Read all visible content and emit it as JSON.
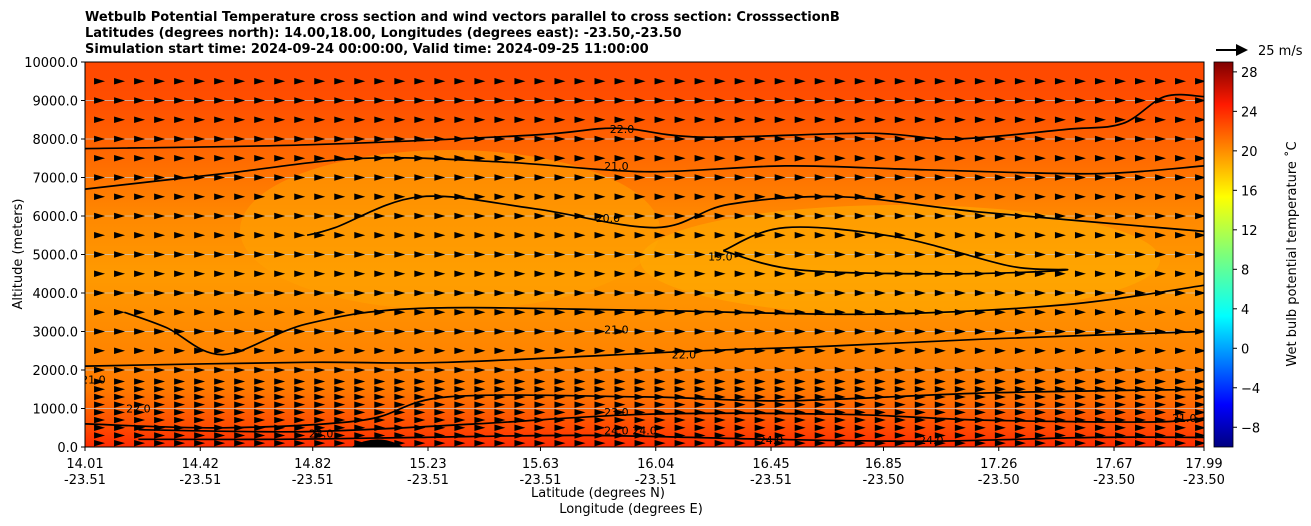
{
  "chart_data": {
    "type": "heatmap",
    "title_lines": [
      "Wetbulb Potential Temperature cross section and wind vectors parallel to cross section: CrosssectionB",
      "Latitudes (degrees north): 14.00,18.00, Longitudes (degrees east): -23.50,-23.50",
      "Simulation start time: 2024-09-24 00:00:00, Valid time: 2024-09-25 11:00:00"
    ],
    "xlabel_lat": "Latitude (degrees N)",
    "xlabel_lon": "Longitude (degrees E)",
    "ylabel": "Altitude (meters)",
    "ylim": [
      0,
      10000
    ],
    "y_ticks": [
      {
        "value": 0,
        "label": "0.0"
      },
      {
        "value": 1000,
        "label": "1000.0"
      },
      {
        "value": 2000,
        "label": "2000.0"
      },
      {
        "value": 3000,
        "label": "3000.0"
      },
      {
        "value": 4000,
        "label": "4000.0"
      },
      {
        "value": 5000,
        "label": "5000.0"
      },
      {
        "value": 6000,
        "label": "6000.0"
      },
      {
        "value": 7000,
        "label": "7000.0"
      },
      {
        "value": 8000,
        "label": "8000.0"
      },
      {
        "value": 9000,
        "label": "9000.0"
      },
      {
        "value": 10000,
        "label": "10000.0"
      }
    ],
    "x_ticks": [
      {
        "lat": "14.01",
        "lon": "-23.51"
      },
      {
        "lat": "14.42",
        "lon": "-23.51"
      },
      {
        "lat": "14.82",
        "lon": "-23.51"
      },
      {
        "lat": "15.23",
        "lon": "-23.51"
      },
      {
        "lat": "15.63",
        "lon": "-23.51"
      },
      {
        "lat": "16.04",
        "lon": "-23.51"
      },
      {
        "lat": "16.45",
        "lon": "-23.51"
      },
      {
        "lat": "16.85",
        "lon": "-23.50"
      },
      {
        "lat": "17.26",
        "lon": "-23.50"
      },
      {
        "lat": "17.67",
        "lon": "-23.50"
      },
      {
        "lat": "17.99",
        "lon": "-23.50"
      }
    ],
    "grid_y": true,
    "colorbar": {
      "label": "Wet bulb potential temperature ˚C",
      "range": [
        -10,
        29
      ],
      "ticks": [
        -8,
        -4,
        0,
        4,
        8,
        12,
        16,
        20,
        24,
        28
      ],
      "tick_labels": [
        "−8",
        "−4",
        "0",
        "4",
        "8",
        "12",
        "16",
        "20",
        "24",
        "28"
      ],
      "colormap": "jet"
    },
    "quiver_key": {
      "label": "25 m/s",
      "speed": 25
    },
    "wind_rows_altitude": [
      100,
      300,
      500,
      700,
      900,
      1100,
      1300,
      1500,
      1700,
      2000,
      2500,
      3000,
      3500,
      4000,
      4500,
      5000,
      5500,
      6000,
      6500,
      7000,
      7500,
      8000,
      8500,
      9000,
      9500
    ],
    "contours": [
      {
        "label": "22.0",
        "points": [
          [
            14.01,
            7750
          ],
          [
            14.8,
            7850
          ],
          [
            15.6,
            8100
          ],
          [
            15.9,
            8280
          ],
          [
            16.2,
            8050
          ],
          [
            16.8,
            8150
          ],
          [
            17.1,
            8000
          ],
          [
            17.5,
            8250
          ],
          [
            17.7,
            8400
          ],
          [
            17.85,
            9100
          ],
          [
            17.99,
            9100
          ]
        ]
      },
      {
        "label": "21.0",
        "points": [
          [
            14.01,
            6700
          ],
          [
            14.5,
            7100
          ],
          [
            15.0,
            7500
          ],
          [
            15.5,
            7400
          ],
          [
            16.0,
            7150
          ],
          [
            16.5,
            7300
          ],
          [
            17.0,
            7200
          ],
          [
            17.6,
            7100
          ],
          [
            17.99,
            7300
          ]
        ]
      },
      {
        "label": "20.0",
        "points": [
          [
            14.8,
            5500
          ],
          [
            14.9,
            5700
          ],
          [
            15.2,
            6500
          ],
          [
            15.6,
            6200
          ],
          [
            16.04,
            5700
          ],
          [
            16.3,
            6300
          ],
          [
            16.7,
            6500
          ],
          [
            17.2,
            6100
          ],
          [
            17.99,
            5600
          ]
        ]
      },
      {
        "label": "19.0",
        "points": [
          [
            16.28,
            5100
          ],
          [
            16.5,
            5700
          ],
          [
            16.9,
            5450
          ],
          [
            17.3,
            4700
          ],
          [
            17.5,
            4600
          ],
          [
            17.1,
            4500
          ],
          [
            16.55,
            4600
          ],
          [
            16.28,
            5100
          ]
        ]
      },
      {
        "label": "21.0",
        "points": [
          [
            14.15,
            3500
          ],
          [
            14.3,
            3100
          ],
          [
            14.5,
            2400
          ],
          [
            14.8,
            3200
          ],
          [
            15.2,
            3600
          ],
          [
            16.0,
            3550
          ],
          [
            16.8,
            3450
          ],
          [
            17.5,
            3700
          ],
          [
            17.99,
            4200
          ]
        ]
      },
      {
        "label": "22.0",
        "points": [
          [
            14.01,
            2100
          ],
          [
            14.8,
            2200
          ],
          [
            15.3,
            2200
          ],
          [
            16.2,
            2500
          ],
          [
            16.6,
            2600
          ],
          [
            17.2,
            2800
          ],
          [
            17.99,
            3000
          ]
        ]
      },
      {
        "label": "22.0",
        "points": [
          [
            14.01,
            600
          ],
          [
            14.5,
            500
          ],
          [
            15.0,
            700
          ],
          [
            15.3,
            1300
          ],
          [
            16.0,
            1300
          ],
          [
            16.5,
            1200
          ],
          [
            17.2,
            1400
          ],
          [
            17.99,
            1500
          ]
        ]
      },
      {
        "label": "23.0",
        "points": [
          [
            14.2,
            450
          ],
          [
            14.8,
            400
          ],
          [
            15.4,
            600
          ],
          [
            16.0,
            850
          ],
          [
            16.7,
            850
          ],
          [
            17.2,
            700
          ],
          [
            17.8,
            650
          ],
          [
            17.99,
            750
          ]
        ]
      },
      {
        "label": "24.0",
        "points": [
          [
            14.2,
            200
          ],
          [
            14.7,
            200
          ],
          [
            15.2,
            250
          ],
          [
            15.8,
            300
          ],
          [
            16.45,
            200
          ],
          [
            17.0,
            150
          ],
          [
            17.6,
            250
          ],
          [
            17.99,
            250
          ]
        ]
      }
    ],
    "contour_labels": [
      {
        "text": "22.0",
        "x": 15.92,
        "y": 8150
      },
      {
        "text": "21.0",
        "x": 15.9,
        "y": 7200
      },
      {
        "text": "20.0",
        "x": 15.87,
        "y": 5850
      },
      {
        "text": "19.0",
        "x": 16.27,
        "y": 4850
      },
      {
        "text": "21.0",
        "x": 15.9,
        "y": 2950
      },
      {
        "text": "22.0",
        "x": 16.14,
        "y": 2300
      },
      {
        "text": "22.0",
        "x": 14.2,
        "y": 900
      },
      {
        "text": "23.0",
        "x": 15.9,
        "y": 800
      },
      {
        "text": "24.0",
        "x": 15.9,
        "y": 320
      },
      {
        "text": "24.0",
        "x": 16.0,
        "y": 320
      },
      {
        "text": "23.0",
        "x": 14.85,
        "y": 250
      },
      {
        "text": "24.0",
        "x": 16.45,
        "y": 80
      },
      {
        "text": "24.0",
        "x": 17.02,
        "y": 80
      },
      {
        "text": "21.0",
        "x": 17.92,
        "y": 650
      },
      {
        "text": "21.0",
        "x": 14.04,
        "y": 1650
      }
    ],
    "terrain_peak": {
      "lat": 15.05,
      "height": 180
    }
  }
}
